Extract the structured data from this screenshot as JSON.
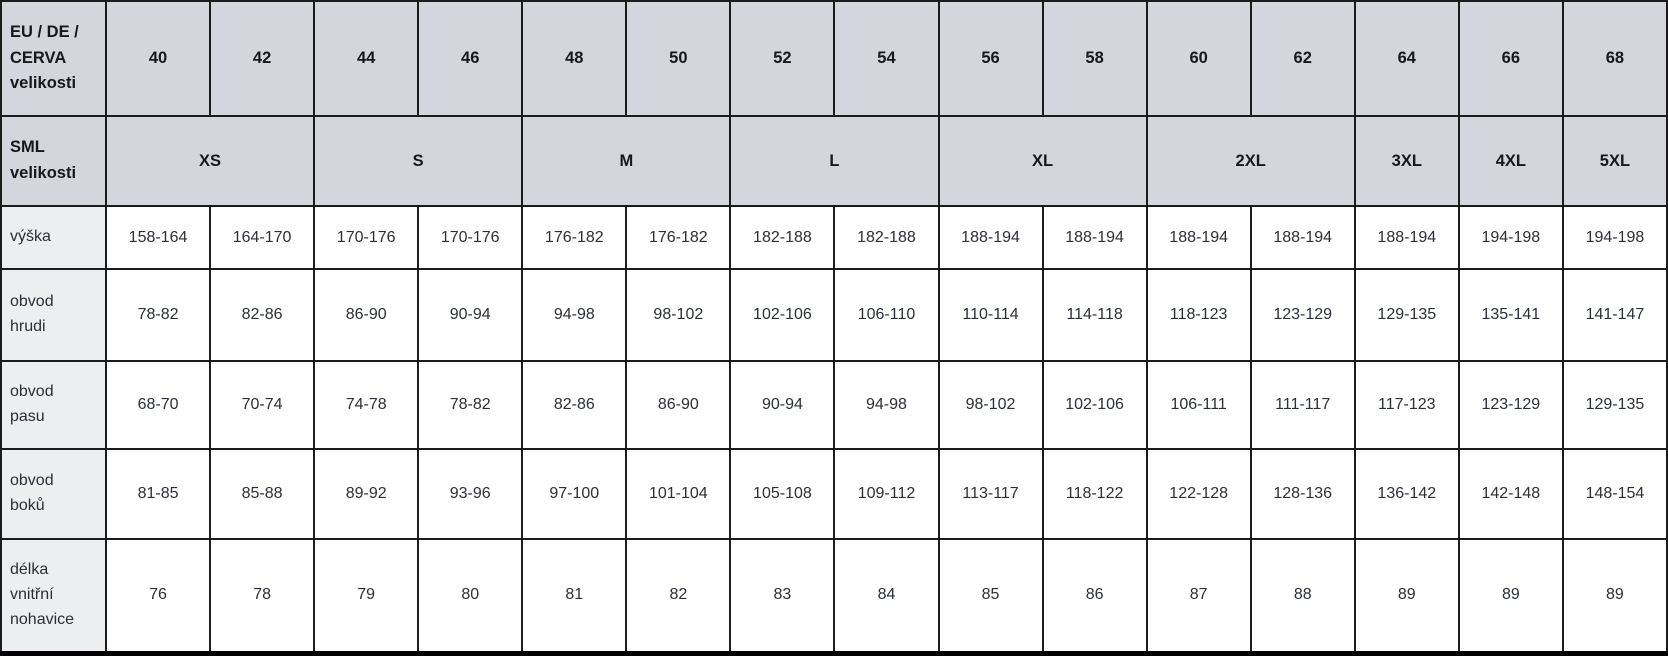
{
  "chart_data": {
    "type": "table",
    "title": "",
    "header_rows": [
      {
        "label": "EU / DE /\nCERVA\nvelikosti",
        "cells": [
          {
            "text": "40",
            "span": 1
          },
          {
            "text": "42",
            "span": 1
          },
          {
            "text": "44",
            "span": 1
          },
          {
            "text": "46",
            "span": 1
          },
          {
            "text": "48",
            "span": 1
          },
          {
            "text": "50",
            "span": 1
          },
          {
            "text": "52",
            "span": 1
          },
          {
            "text": "54",
            "span": 1
          },
          {
            "text": "56",
            "span": 1
          },
          {
            "text": "58",
            "span": 1
          },
          {
            "text": "60",
            "span": 1
          },
          {
            "text": "62",
            "span": 1
          },
          {
            "text": "64",
            "span": 1
          },
          {
            "text": "66",
            "span": 1
          },
          {
            "text": "68",
            "span": 1
          }
        ]
      },
      {
        "label": "SML\nvelikosti",
        "cells": [
          {
            "text": "XS",
            "span": 2
          },
          {
            "text": "S",
            "span": 2
          },
          {
            "text": "M",
            "span": 2
          },
          {
            "text": "L",
            "span": 2
          },
          {
            "text": "XL",
            "span": 2
          },
          {
            "text": "2XL",
            "span": 2
          },
          {
            "text": "3XL",
            "span": 1
          },
          {
            "text": "4XL",
            "span": 1
          },
          {
            "text": "5XL",
            "span": 1
          }
        ]
      }
    ],
    "body_rows": [
      {
        "label": "výška",
        "values": [
          "158-164",
          "164-170",
          "170-176",
          "170-176",
          "176-182",
          "176-182",
          "182-188",
          "182-188",
          "188-194",
          "188-194",
          "188-194",
          "188-194",
          "188-194",
          "194-198",
          "194-198"
        ]
      },
      {
        "label": "obvod\nhrudi",
        "values": [
          "78-82",
          "82-86",
          "86-90",
          "90-94",
          "94-98",
          "98-102",
          "102-106",
          "106-110",
          "110-114",
          "114-118",
          "118-123",
          "123-129",
          "129-135",
          "135-141",
          "141-147"
        ]
      },
      {
        "label": "obvod\npasu",
        "values": [
          "68-70",
          "70-74",
          "74-78",
          "78-82",
          "82-86",
          "86-90",
          "90-94",
          "94-98",
          "98-102",
          "102-106",
          "106-111",
          "111-117",
          "117-123",
          "123-129",
          "129-135"
        ]
      },
      {
        "label": "obvod\nboků",
        "values": [
          "81-85",
          "85-88",
          "89-92",
          "93-96",
          "97-100",
          "101-104",
          "105-108",
          "109-112",
          "113-117",
          "118-122",
          "122-128",
          "128-136",
          "136-142",
          "142-148",
          "148-154"
        ]
      },
      {
        "label": "délka\nvnitřní\nnohavice",
        "values": [
          "76",
          "78",
          "79",
          "80",
          "81",
          "82",
          "83",
          "84",
          "85",
          "86",
          "87",
          "88",
          "89",
          "89",
          "89"
        ]
      }
    ]
  },
  "colors": {
    "header_bg": "#d3d6dc",
    "label_bg": "#edeef0",
    "border": "#1b1b1b",
    "bottom_border": "#000000",
    "header_text": "#15181d",
    "body_text": "#2b2f36"
  }
}
